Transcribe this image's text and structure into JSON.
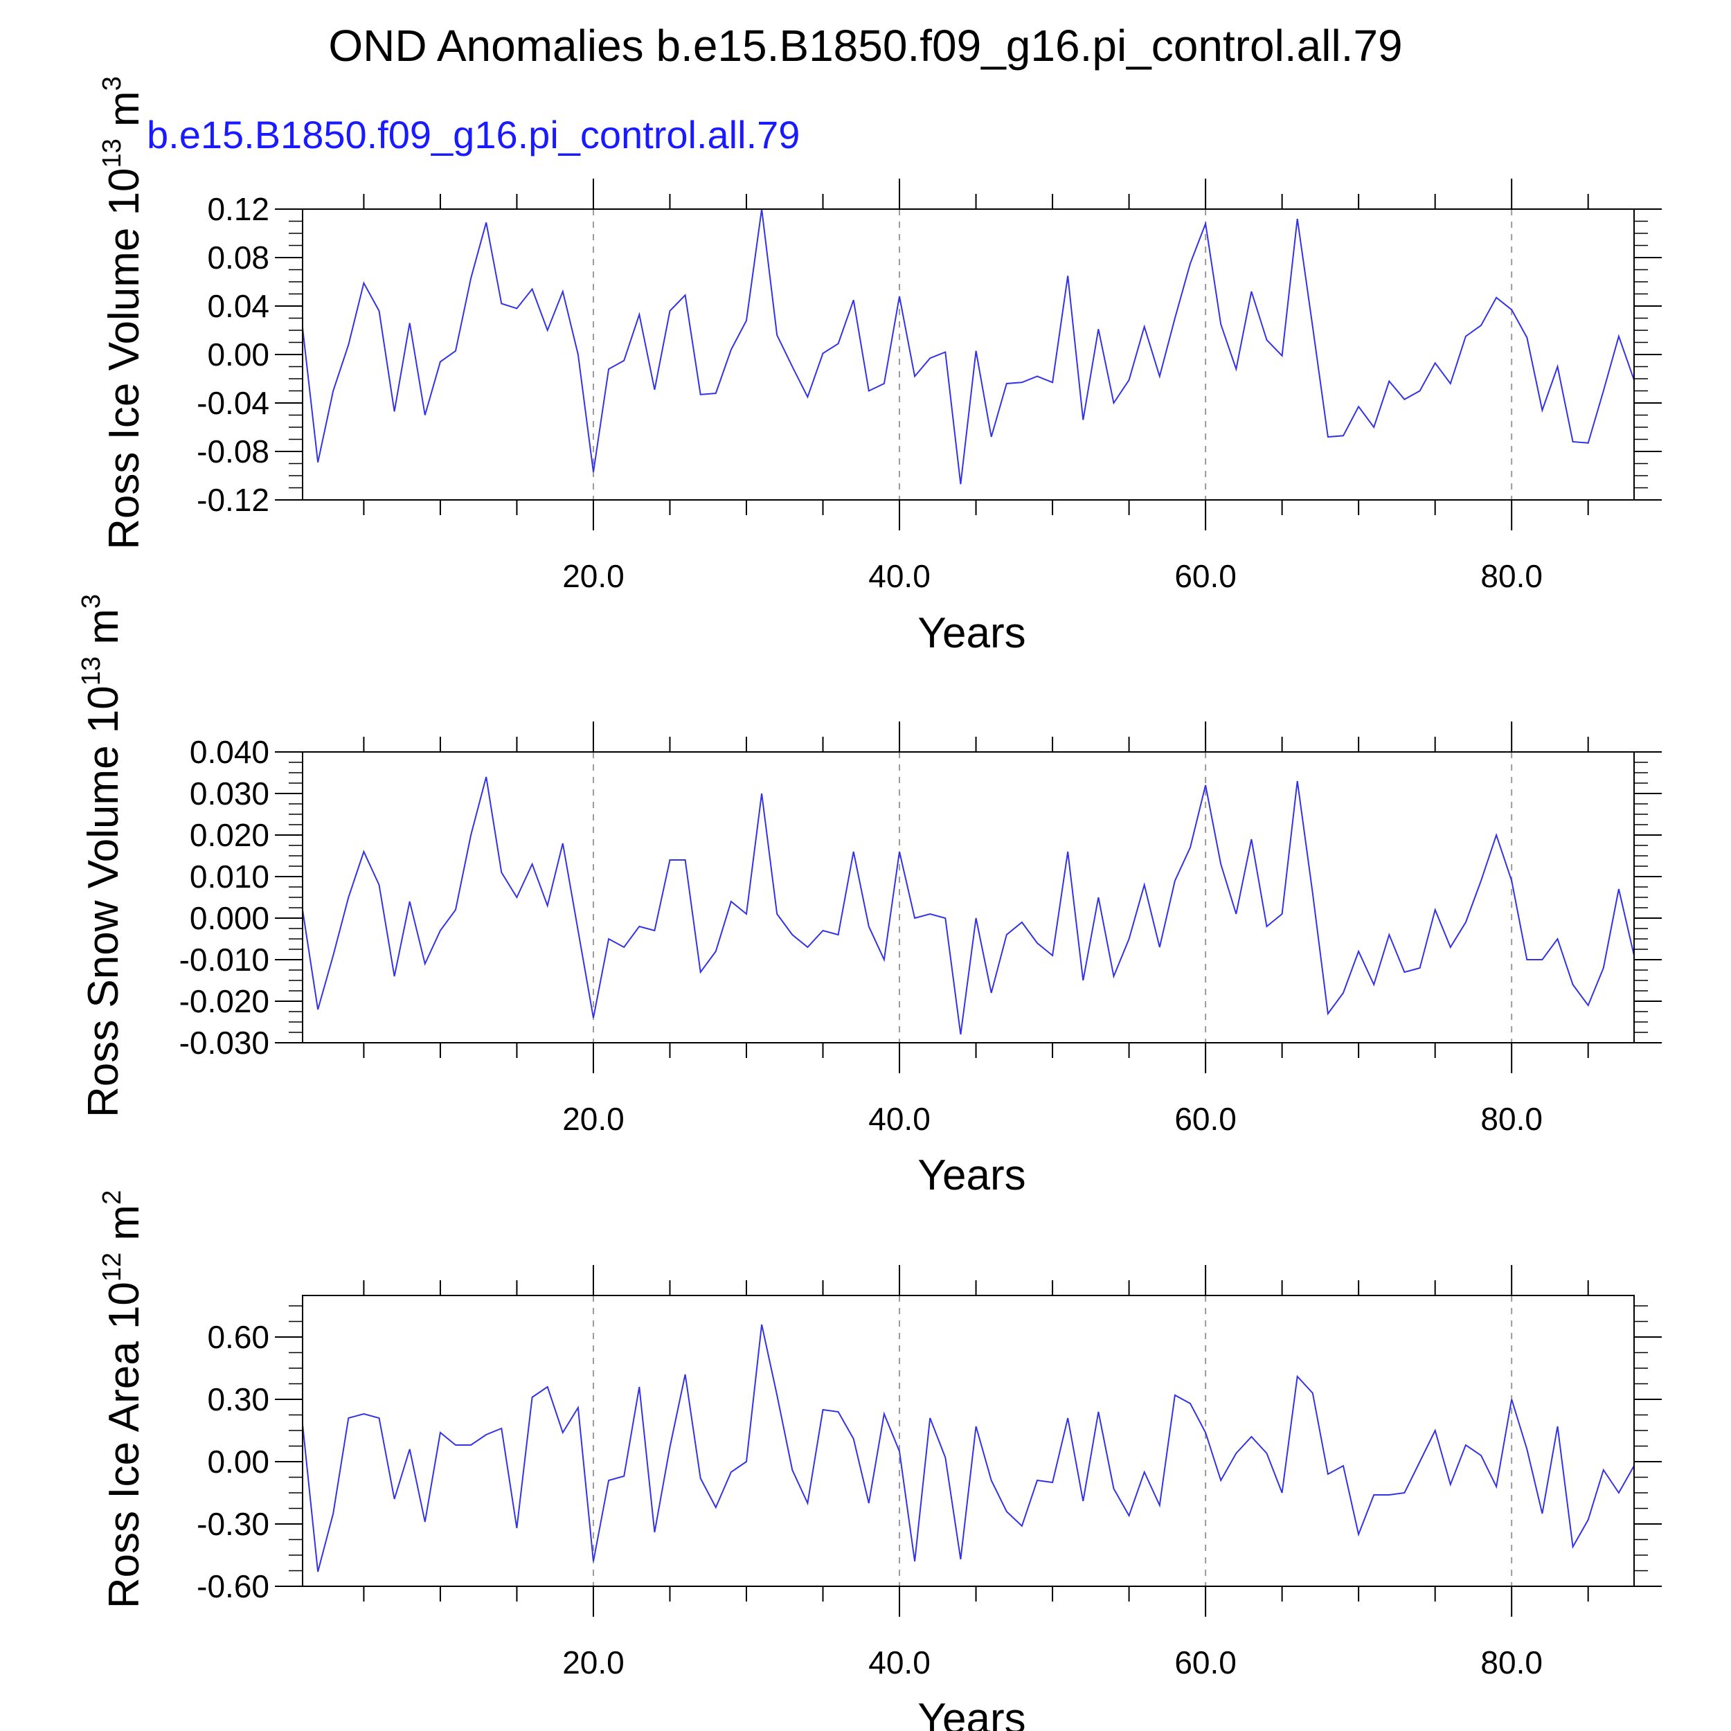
{
  "title": "OND Anomalies b.e15.B1850.f09_g16.pi_control.all.79",
  "case_label": "b.e15.B1850.f09_g16.pi_control.all.79",
  "colors": {
    "line": "#3333e6",
    "case_label": "#1a1aff",
    "grid": "#9a9a9a",
    "axis": "#000000"
  },
  "chart_data": [
    {
      "type": "line",
      "ylabel": "Ross Ice Volume",
      "yunit_base": "10",
      "yunit_exp": "13",
      "yunit_unit": "m",
      "yunit_unit_exp": "3",
      "xlabel": "Years",
      "xlim": [
        1,
        88
      ],
      "ylim": [
        -0.12,
        0.12
      ],
      "xticks": [
        20,
        40,
        60,
        80
      ],
      "xtick_labels": [
        "20.0",
        "40.0",
        "60.0",
        "80.0"
      ],
      "yticks": [
        -0.12,
        -0.08,
        -0.04,
        0.0,
        0.04,
        0.08,
        0.12
      ],
      "ytick_labels": [
        "-0.12",
        "-0.08",
        "-0.04",
        "0.00",
        "0.04",
        "0.08",
        "0.12"
      ],
      "grid_x": [
        20,
        40,
        60,
        80
      ],
      "x_start": 1,
      "values": [
        0.022,
        -0.089,
        -0.03,
        0.008,
        0.059,
        0.036,
        -0.047,
        0.026,
        -0.05,
        -0.006,
        0.003,
        0.063,
        0.109,
        0.042,
        0.038,
        0.054,
        0.02,
        0.052,
        0.0,
        -0.097,
        -0.012,
        -0.005,
        0.033,
        -0.029,
        0.036,
        0.049,
        -0.033,
        -0.032,
        0.004,
        0.028,
        0.12,
        0.016,
        -0.01,
        -0.035,
        0.001,
        0.009,
        0.045,
        -0.03,
        -0.024,
        0.048,
        -0.018,
        -0.003,
        0.002,
        -0.107,
        0.003,
        -0.068,
        -0.024,
        -0.023,
        -0.018,
        -0.023,
        0.065,
        -0.054,
        0.021,
        -0.04,
        -0.021,
        0.023,
        -0.018,
        0.03,
        0.075,
        0.108,
        0.025,
        -0.012,
        0.052,
        0.012,
        -0.001,
        0.112,
        0.023,
        -0.068,
        -0.067,
        -0.043,
        -0.06,
        -0.022,
        -0.037,
        -0.03,
        -0.007,
        -0.024,
        0.015,
        0.024,
        0.047,
        0.037,
        0.014,
        -0.046,
        -0.01,
        -0.072,
        -0.073,
        -0.03,
        0.015,
        -0.021
      ]
    },
    {
      "type": "line",
      "ylabel": "Ross Snow Volume",
      "yunit_base": "10",
      "yunit_exp": "13",
      "yunit_unit": "m",
      "yunit_unit_exp": "3",
      "xlabel": "Years",
      "xlim": [
        1,
        88
      ],
      "ylim": [
        -0.03,
        0.04
      ],
      "xticks": [
        20,
        40,
        60,
        80
      ],
      "xtick_labels": [
        "20.0",
        "40.0",
        "60.0",
        "80.0"
      ],
      "yticks": [
        -0.03,
        -0.02,
        -0.01,
        0.0,
        0.01,
        0.02,
        0.03,
        0.04
      ],
      "ytick_labels": [
        "-0.030",
        "-0.020",
        "-0.010",
        "0.000",
        "0.010",
        "0.020",
        "0.030",
        "0.040"
      ],
      "grid_x": [
        20,
        40,
        60,
        80
      ],
      "x_start": 1,
      "values": [
        0.002,
        -0.022,
        -0.009,
        0.005,
        0.016,
        0.008,
        -0.014,
        0.004,
        -0.011,
        -0.003,
        0.002,
        0.02,
        0.034,
        0.011,
        0.005,
        0.013,
        0.003,
        0.018,
        -0.003,
        -0.024,
        -0.005,
        -0.007,
        -0.002,
        -0.003,
        0.014,
        0.014,
        -0.013,
        -0.008,
        0.004,
        0.001,
        0.03,
        0.001,
        -0.004,
        -0.007,
        -0.003,
        -0.004,
        0.016,
        -0.002,
        -0.01,
        0.016,
        0.0,
        0.001,
        0.0,
        -0.028,
        0.0,
        -0.018,
        -0.004,
        -0.001,
        -0.006,
        -0.009,
        0.016,
        -0.015,
        0.005,
        -0.014,
        -0.005,
        0.008,
        -0.007,
        0.009,
        0.017,
        0.032,
        0.013,
        0.001,
        0.019,
        -0.002,
        0.001,
        0.033,
        0.006,
        -0.023,
        -0.018,
        -0.008,
        -0.016,
        -0.004,
        -0.013,
        -0.012,
        0.002,
        -0.007,
        -0.001,
        0.009,
        0.02,
        0.009,
        -0.01,
        -0.01,
        -0.005,
        -0.016,
        -0.021,
        -0.012,
        0.007,
        -0.009
      ]
    },
    {
      "type": "line",
      "ylabel": "Ross Ice Area",
      "yunit_base": "10",
      "yunit_exp": "12",
      "yunit_unit": "m",
      "yunit_unit_exp": "2",
      "xlabel": "Years",
      "xlim": [
        1,
        88
      ],
      "ylim": [
        -0.6,
        0.8
      ],
      "xticks": [
        20,
        40,
        60,
        80
      ],
      "xtick_labels": [
        "20.0",
        "40.0",
        "60.0",
        "80.0"
      ],
      "yticks": [
        -0.6,
        -0.3,
        0.0,
        0.3,
        0.6
      ],
      "ytick_labels": [
        "-0.60",
        "-0.30",
        "0.00",
        "0.30",
        "0.60"
      ],
      "grid_x": [
        20,
        40,
        60,
        80
      ],
      "x_start": 1,
      "values": [
        0.18,
        -0.53,
        -0.25,
        0.21,
        0.23,
        0.21,
        -0.18,
        0.06,
        -0.29,
        0.14,
        0.08,
        0.08,
        0.13,
        0.16,
        -0.32,
        0.31,
        0.36,
        0.14,
        0.26,
        -0.48,
        -0.09,
        -0.07,
        0.36,
        -0.34,
        0.07,
        0.42,
        -0.08,
        -0.22,
        -0.05,
        0.0,
        0.66,
        0.32,
        -0.04,
        -0.2,
        0.25,
        0.24,
        0.11,
        -0.2,
        0.23,
        0.05,
        -0.48,
        0.21,
        0.02,
        -0.47,
        0.17,
        -0.09,
        -0.24,
        -0.31,
        -0.09,
        -0.1,
        0.21,
        -0.19,
        0.24,
        -0.13,
        -0.26,
        -0.05,
        -0.21,
        0.32,
        0.28,
        0.14,
        -0.09,
        0.04,
        0.12,
        0.04,
        -0.15,
        0.41,
        0.33,
        -0.06,
        -0.02,
        -0.35,
        -0.16,
        -0.16,
        -0.15,
        0.0,
        0.15,
        -0.11,
        0.08,
        0.03,
        -0.12,
        0.3,
        0.06,
        -0.25,
        0.17,
        -0.41,
        -0.28,
        -0.04,
        -0.15,
        -0.02
      ]
    }
  ]
}
